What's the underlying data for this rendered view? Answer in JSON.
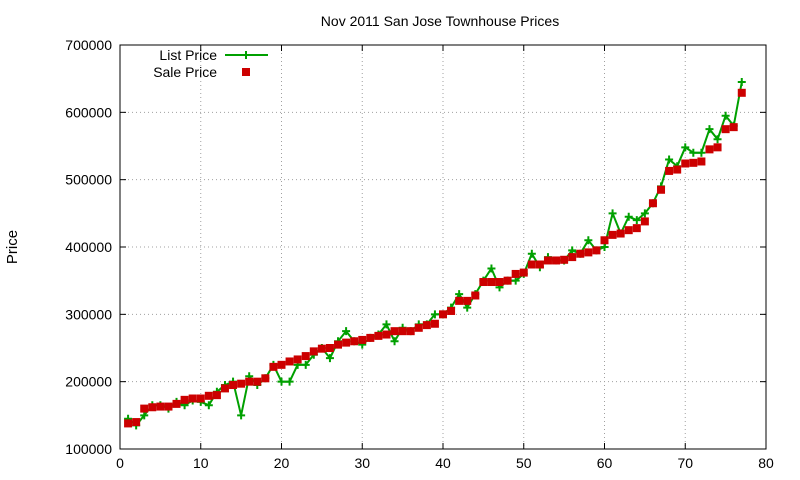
{
  "chart_data": {
    "type": "line",
    "title": "Nov 2011 San Jose Townhouse Prices",
    "xlabel": "",
    "ylabel": "Price",
    "xlim": [
      0,
      80
    ],
    "ylim": [
      100000,
      700000
    ],
    "xticks": [
      0,
      10,
      20,
      30,
      40,
      50,
      60,
      70,
      80
    ],
    "yticks": [
      100000,
      200000,
      300000,
      400000,
      500000,
      600000,
      700000
    ],
    "grid": true,
    "legend": "top-left",
    "series": [
      {
        "name": "List Price",
        "style": "line+cross",
        "color": "#00a000",
        "values": [
          145000,
          135000,
          150000,
          165000,
          165000,
          160000,
          170000,
          165000,
          172000,
          170000,
          165000,
          185000,
          195000,
          200000,
          150000,
          208000,
          195000,
          205000,
          225000,
          200000,
          200000,
          225000,
          225000,
          240000,
          250000,
          235000,
          260000,
          275000,
          260000,
          255000,
          265000,
          270000,
          285000,
          260000,
          280000,
          275000,
          285000,
          285000,
          300000,
          300000,
          310000,
          330000,
          310000,
          330000,
          350000,
          368000,
          340000,
          350000,
          350000,
          360000,
          390000,
          370000,
          385000,
          380000,
          380000,
          395000,
          390000,
          410000,
          395000,
          400000,
          450000,
          420000,
          445000,
          440000,
          450000,
          465000,
          490000,
          530000,
          520000,
          548000,
          540000,
          540000,
          575000,
          560000,
          595000,
          580000,
          645000
        ]
      },
      {
        "name": "Sale Price",
        "style": "filled-square",
        "color": "#cc0000",
        "values": [
          138000,
          140000,
          160000,
          162000,
          163000,
          163000,
          167000,
          173000,
          175000,
          175000,
          179000,
          180000,
          190000,
          195000,
          197000,
          200000,
          200000,
          205000,
          222000,
          225000,
          230000,
          233000,
          238000,
          245000,
          249000,
          250000,
          255000,
          258000,
          260000,
          262000,
          265000,
          268000,
          270000,
          275000,
          275000,
          275000,
          280000,
          284000,
          286000,
          300000,
          305000,
          320000,
          320000,
          328000,
          348000,
          348000,
          348000,
          350000,
          360000,
          362000,
          374000,
          374000,
          380000,
          380000,
          381000,
          385000,
          390000,
          392000,
          395000,
          410000,
          418000,
          420000,
          425000,
          428000,
          438000,
          465000,
          485000,
          513000,
          515000,
          524000,
          525000,
          527000,
          545000,
          548000,
          575000,
          578000,
          629000
        ]
      }
    ]
  }
}
